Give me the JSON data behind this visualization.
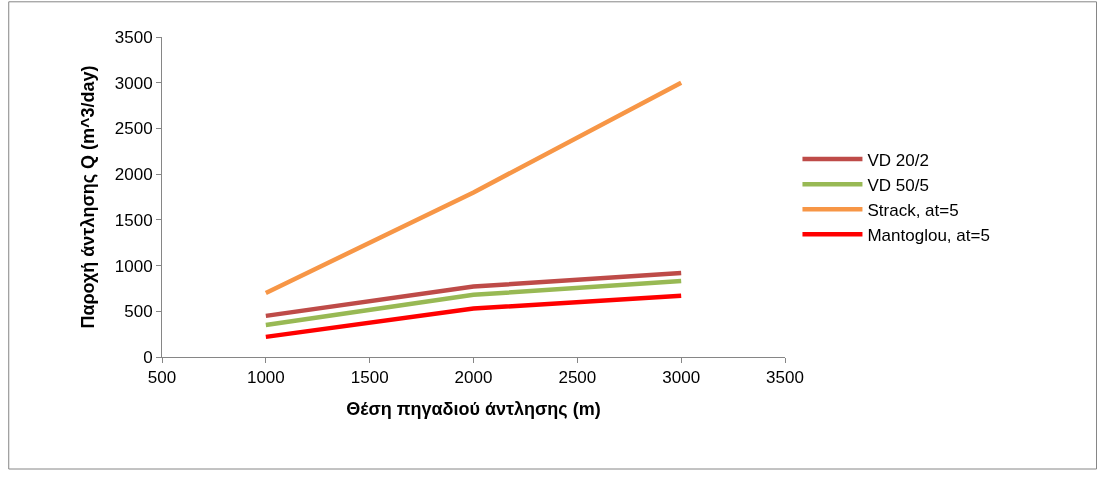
{
  "chart_data": {
    "type": "line",
    "xlabel": "Θέση πηγαδιού άντλησης (m)",
    "ylabel": "Παροχή άντλησης Q (m^3/day)",
    "x": [
      1000,
      2000,
      3000
    ],
    "series": [
      {
        "name": "VD 20/2",
        "color": "#be4b48",
        "values": [
          450,
          770,
          920
        ]
      },
      {
        "name": "VD 50/5",
        "color": "#98b954",
        "values": [
          350,
          680,
          830
        ]
      },
      {
        "name": "Strack, at=5",
        "color": "#f79646",
        "values": [
          700,
          1800,
          3000
        ]
      },
      {
        "name": "Mantoglou, at=5",
        "color": "#ff0000",
        "values": [
          220,
          530,
          670
        ]
      }
    ],
    "xlim": [
      500,
      3500
    ],
    "xticks": [
      500,
      1000,
      1500,
      2000,
      2500,
      3000,
      3500
    ],
    "ylim": [
      0,
      3500
    ],
    "yticks": [
      0,
      500,
      1000,
      1500,
      2000,
      2500,
      3000,
      3500
    ],
    "legend": "right",
    "marker": "none",
    "line_style": "solid"
  }
}
